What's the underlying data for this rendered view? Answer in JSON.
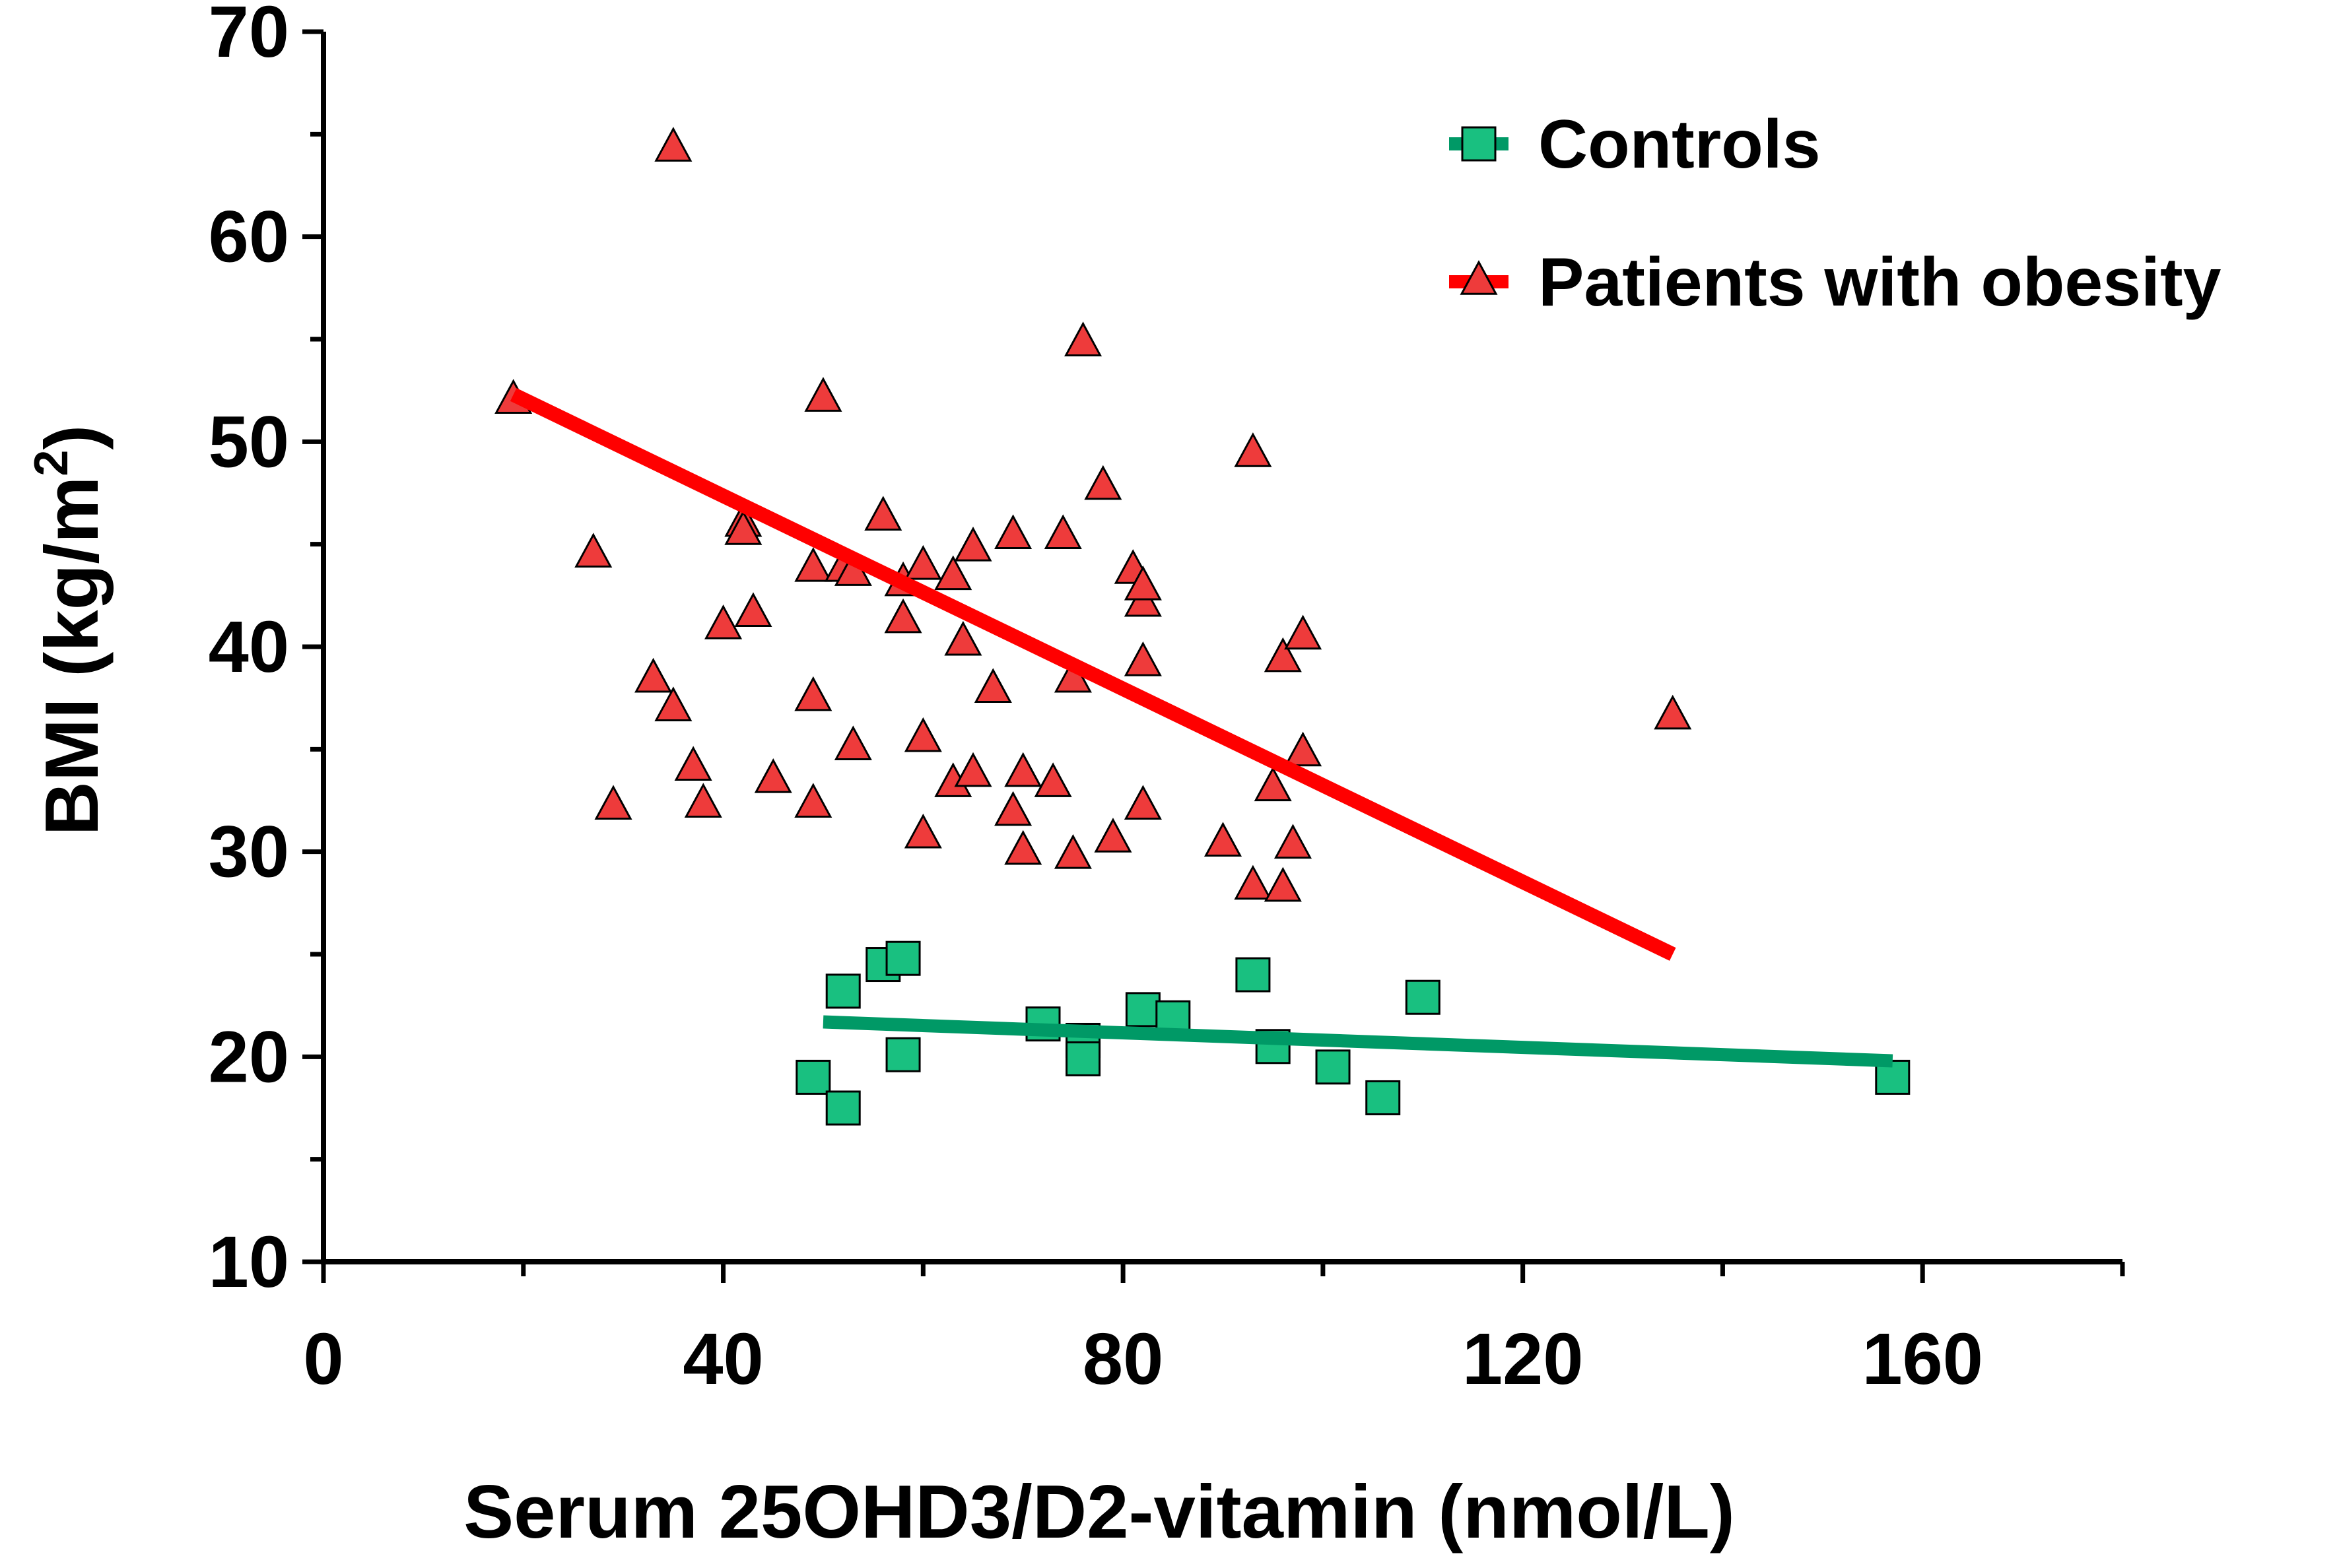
{
  "chart_data": {
    "type": "scatter",
    "title": "",
    "xlabel": "Serum 25OHD3/D2-vitamin (nmol/L)",
    "ylabel_main": "BMI (kg/m",
    "ylabel_sup": "2",
    "ylabel_close": ")",
    "xlim": [
      0,
      180
    ],
    "ylim": [
      10,
      70
    ],
    "xticks": [
      0,
      40,
      80,
      120,
      160
    ],
    "yticks": [
      10,
      20,
      30,
      40,
      50,
      60,
      70
    ],
    "xtick_labels": [
      "0",
      "40",
      "80",
      "120",
      "160"
    ],
    "ytick_labels": [
      "10",
      "20",
      "30",
      "40",
      "50",
      "60",
      "70"
    ],
    "legend_position": "top-right",
    "series": [
      {
        "name": "Controls",
        "marker": "square",
        "color": "#19c080",
        "line_color": "#009966",
        "fit": {
          "x": [
            50,
            157
          ],
          "y": [
            21.7,
            19.8
          ]
        },
        "points": [
          [
            49,
            19
          ],
          [
            52,
            23.2
          ],
          [
            52,
            17.5
          ],
          [
            56,
            24.5
          ],
          [
            58,
            24.8
          ],
          [
            58,
            20.1
          ],
          [
            72,
            21.6
          ],
          [
            76,
            20.8
          ],
          [
            76,
            19.9
          ],
          [
            82,
            22.3
          ],
          [
            85,
            21.9
          ],
          [
            93,
            24
          ],
          [
            95,
            20.5
          ],
          [
            101,
            19.5
          ],
          [
            106,
            18
          ],
          [
            110,
            22.9
          ],
          [
            157,
            19
          ]
        ]
      },
      {
        "name": "Patients with obesity",
        "marker": "triangle",
        "color": "#ee3b3b",
        "line_color": "#ff0000",
        "fit": {
          "x": [
            19,
            135
          ],
          "y": [
            52.3,
            25
          ]
        },
        "points": [
          [
            19,
            52
          ],
          [
            27,
            44.5
          ],
          [
            29,
            32.2
          ],
          [
            33,
            38.4
          ],
          [
            35,
            37
          ],
          [
            35,
            64.3
          ],
          [
            37,
            34.1
          ],
          [
            38,
            32.3
          ],
          [
            40,
            41
          ],
          [
            42,
            46
          ],
          [
            42,
            45.6
          ],
          [
            43,
            41.6
          ],
          [
            45,
            33.5
          ],
          [
            49,
            37.5
          ],
          [
            49,
            32.3
          ],
          [
            49,
            43.8
          ],
          [
            50,
            52.1
          ],
          [
            52,
            43.8
          ],
          [
            53,
            43.6
          ],
          [
            53,
            35.1
          ],
          [
            56,
            46.3
          ],
          [
            58,
            43.1
          ],
          [
            58,
            41.3
          ],
          [
            60,
            43.9
          ],
          [
            60,
            35.5
          ],
          [
            60,
            30.8
          ],
          [
            63,
            33.3
          ],
          [
            63,
            43.4
          ],
          [
            64,
            40.2
          ],
          [
            65,
            44.8
          ],
          [
            65,
            33.8
          ],
          [
            67,
            37.9
          ],
          [
            69,
            31.9
          ],
          [
            69,
            45.4
          ],
          [
            70,
            33.8
          ],
          [
            70,
            30
          ],
          [
            73,
            33.3
          ],
          [
            74,
            45.4
          ],
          [
            75,
            29.8
          ],
          [
            75,
            38.4
          ],
          [
            76,
            54.8
          ],
          [
            78,
            47.8
          ],
          [
            79,
            30.6
          ],
          [
            81,
            43.7
          ],
          [
            82,
            42.1
          ],
          [
            82,
            42.9
          ],
          [
            82,
            39.2
          ],
          [
            82,
            32.2
          ],
          [
            90,
            30.4
          ],
          [
            93,
            28.3
          ],
          [
            93,
            49.4
          ],
          [
            95,
            33.1
          ],
          [
            96,
            28.2
          ],
          [
            96,
            39.4
          ],
          [
            97,
            30.3
          ],
          [
            98,
            40.5
          ],
          [
            98,
            34.8
          ],
          [
            135,
            36.6
          ]
        ]
      }
    ]
  }
}
